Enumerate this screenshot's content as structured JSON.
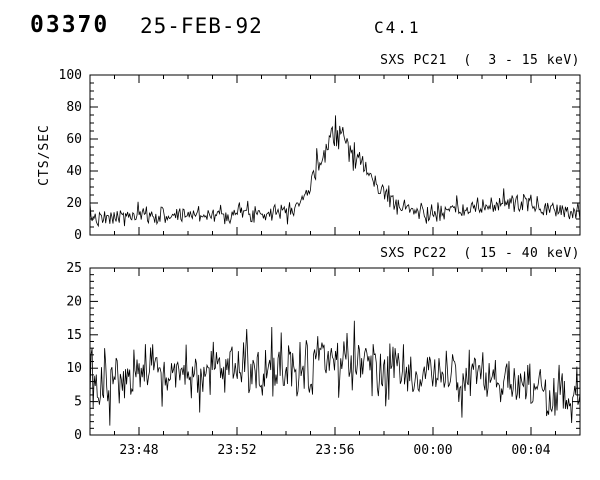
{
  "header": {
    "obs_id": "03370",
    "date": "25-FEB-92",
    "flare_class": "C4.1"
  },
  "chart_data": [
    {
      "type": "line",
      "title": "SXS PC21  (  3 - 15 keV)",
      "ylabel": "CTS/SEC",
      "ylim": [
        0,
        100
      ],
      "yticks": [
        0,
        20,
        40,
        60,
        80,
        100
      ],
      "y_minor_step": 5,
      "x_minutes_range": [
        0,
        20
      ],
      "x_tick_minutes": [
        2,
        6,
        10,
        14,
        18
      ],
      "x_tick_labels": [
        "23:48",
        "23:52",
        "23:56",
        "00:00",
        "00:04"
      ],
      "x_minor_step": 1,
      "show_x_labels": false,
      "grid": false,
      "legend": "none",
      "n_points": 470,
      "seed": 7,
      "noise_sigma": 2.3,
      "noise_scale": 0.05,
      "keypoints": [
        [
          0,
          12
        ],
        [
          0.5,
          9
        ],
        [
          1,
          11
        ],
        [
          2,
          12
        ],
        [
          3,
          12
        ],
        [
          4,
          13
        ],
        [
          5,
          13
        ],
        [
          6,
          14
        ],
        [
          7,
          14
        ],
        [
          8,
          16
        ],
        [
          8.5,
          20
        ],
        [
          9,
          30
        ],
        [
          9.3,
          42
        ],
        [
          9.6,
          55
        ],
        [
          9.9,
          65
        ],
        [
          10.1,
          68
        ],
        [
          10.4,
          60
        ],
        [
          10.8,
          52
        ],
        [
          11.2,
          42
        ],
        [
          11.6,
          33
        ],
        [
          12,
          26
        ],
        [
          12.5,
          20
        ],
        [
          13,
          16
        ],
        [
          13.5,
          14
        ],
        [
          14,
          13
        ],
        [
          15,
          15
        ],
        [
          16,
          17
        ],
        [
          16.5,
          19
        ],
        [
          17,
          21
        ],
        [
          17.5,
          20
        ],
        [
          18,
          19
        ],
        [
          18.5,
          17
        ],
        [
          19,
          16
        ],
        [
          20,
          15
        ]
      ]
    },
    {
      "type": "line",
      "title": "SXS PC22  ( 15 - 40 keV)",
      "ylabel": "",
      "ylim": [
        0,
        25
      ],
      "yticks": [
        0,
        5,
        10,
        15,
        20,
        25
      ],
      "y_minor_step": 1,
      "x_minutes_range": [
        0,
        20
      ],
      "x_tick_minutes": [
        2,
        6,
        10,
        14,
        18
      ],
      "x_tick_labels": [
        "23:48",
        "23:52",
        "23:56",
        "00:00",
        "00:04"
      ],
      "x_minor_step": 1,
      "show_x_labels": true,
      "grid": false,
      "legend": "none",
      "n_points": 470,
      "seed": 13,
      "noise_sigma": 2.0,
      "noise_scale": 0.04,
      "keypoints": [
        [
          0,
          7
        ],
        [
          1,
          8
        ],
        [
          2,
          8.5
        ],
        [
          3,
          9
        ],
        [
          4,
          9
        ],
        [
          5,
          9.5
        ],
        [
          6,
          9.5
        ],
        [
          7,
          10
        ],
        [
          8,
          10
        ],
        [
          9,
          10.5
        ],
        [
          10,
          11
        ],
        [
          11,
          10.5
        ],
        [
          12,
          10
        ],
        [
          13,
          9.5
        ],
        [
          14,
          9
        ],
        [
          15,
          9
        ],
        [
          16,
          8.5
        ],
        [
          17,
          8
        ],
        [
          18,
          6.5
        ],
        [
          19,
          5.5
        ],
        [
          19.5,
          5
        ],
        [
          20,
          6.5
        ]
      ]
    }
  ]
}
